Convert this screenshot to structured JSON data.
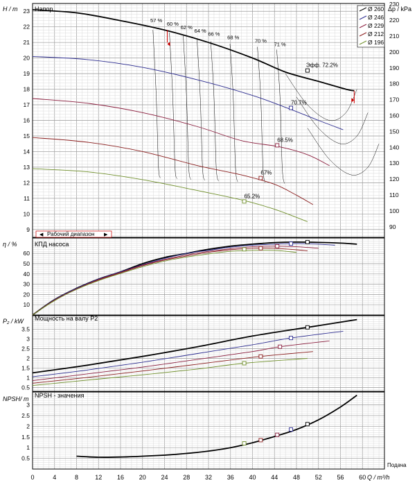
{
  "chart_data": {
    "type": "line",
    "x_axis": {
      "label": "Q / m³/h",
      "range": [
        0,
        64
      ],
      "ticks": [
        0,
        4,
        8,
        12,
        16,
        20,
        24,
        28,
        32,
        36,
        40,
        44,
        48,
        52,
        56,
        60
      ],
      "extra_label": "Подача"
    },
    "head": {
      "title": "Напор",
      "ylabel": "H / m",
      "ylim": [
        8.5,
        23.5
      ],
      "ticks": [
        9,
        10,
        11,
        12,
        13,
        14,
        15,
        16,
        17,
        18,
        19,
        20,
        21,
        22,
        23
      ],
      "right_axis": {
        "label": "Δp / kPa",
        "ticks": [
          90,
          100,
          110,
          120,
          130,
          140,
          150,
          160,
          170,
          180,
          190,
          200,
          210,
          220,
          230
        ]
      },
      "legend": [
        "Ø 260",
        "Ø 246",
        "Ø 229",
        "Ø 212",
        "Ø 196"
      ],
      "series": [
        {
          "name": "Ø 260",
          "color": "#000000",
          "points": [
            [
              0,
              23.1
            ],
            [
              8,
              22.9
            ],
            [
              16,
              22.4
            ],
            [
              24,
              21.8
            ],
            [
              32,
              21.0
            ],
            [
              40,
              20.0
            ],
            [
              46,
              19.1
            ],
            [
              52,
              18.5
            ],
            [
              57,
              18.0
            ],
            [
              58.5,
              17.9
            ]
          ]
        },
        {
          "name": "Ø 246",
          "color": "#2b2b8f",
          "points": [
            [
              0,
              20.1
            ],
            [
              10,
              19.9
            ],
            [
              20,
              19.4
            ],
            [
              30,
              18.6
            ],
            [
              40,
              17.6
            ],
            [
              47,
              16.7
            ],
            [
              52,
              16.0
            ],
            [
              56.5,
              15.4
            ]
          ]
        },
        {
          "name": "Ø 229",
          "color": "#8a1d3d",
          "points": [
            [
              0,
              17.4
            ],
            [
              10,
              17.1
            ],
            [
              20,
              16.5
            ],
            [
              30,
              15.6
            ],
            [
              38,
              14.7
            ],
            [
              45,
              14.3
            ],
            [
              50,
              13.8
            ],
            [
              54,
              13.1
            ]
          ]
        },
        {
          "name": "Ø 212",
          "color": "#8a1d1d",
          "points": [
            [
              0,
              14.9
            ],
            [
              10,
              14.6
            ],
            [
              20,
              14.0
            ],
            [
              30,
              13.1
            ],
            [
              38,
              12.5
            ],
            [
              44,
              11.9
            ],
            [
              48,
              11.2
            ],
            [
              51,
              10.6
            ]
          ]
        },
        {
          "name": "Ø 196",
          "color": "#6f8f2a",
          "points": [
            [
              0,
              12.9
            ],
            [
              10,
              12.7
            ],
            [
              20,
              12.2
            ],
            [
              30,
              11.5
            ],
            [
              38,
              10.9
            ],
            [
              44,
              10.3
            ],
            [
              50,
              9.5
            ]
          ]
        }
      ],
      "efficiency_labels": [
        "57 %",
        "60 %",
        "62 %",
        "64 %",
        "66 %",
        "68 %",
        "70 %",
        "71 %"
      ],
      "point_labels": [
        "Эфф.  72.2%",
        "70.7%",
        "68.5%",
        "67%",
        "65.2%"
      ],
      "working_range_label": "Рабочий диапазон"
    },
    "efficiency": {
      "title": "КПД насоса",
      "ylabel": "η / %",
      "ylim": [
        0,
        75
      ],
      "ticks": [
        10,
        20,
        30,
        40,
        50,
        60
      ],
      "series": [
        {
          "name": "Ø 260",
          "color": "#000000",
          "points": [
            [
              0,
              0
            ],
            [
              4,
              15
            ],
            [
              8,
              26
            ],
            [
              12,
              35
            ],
            [
              16,
              42
            ],
            [
              20,
              50
            ],
            [
              24,
              56
            ],
            [
              28,
              60
            ],
            [
              32,
              64
            ],
            [
              36,
              67
            ],
            [
              40,
              69
            ],
            [
              44,
              70.5
            ],
            [
              48,
              71
            ],
            [
              52,
              70.7
            ],
            [
              56,
              70
            ],
            [
              59,
              69
            ]
          ]
        },
        {
          "name": "Ø 246",
          "color": "#2b2b8f",
          "points": [
            [
              0,
              0
            ],
            [
              4,
              15
            ],
            [
              8,
              26
            ],
            [
              12,
              35
            ],
            [
              16,
              42
            ],
            [
              20,
              49
            ],
            [
              24,
              55
            ],
            [
              28,
              60
            ],
            [
              32,
              63
            ],
            [
              36,
              66
            ],
            [
              40,
              68
            ],
            [
              44,
              69
            ],
            [
              48,
              69.5
            ],
            [
              52,
              69
            ],
            [
              55,
              68
            ]
          ]
        },
        {
          "name": "Ø 229",
          "color": "#8a1d3d",
          "points": [
            [
              0,
              0
            ],
            [
              4,
              14.5
            ],
            [
              8,
              25.5
            ],
            [
              12,
              34.5
            ],
            [
              16,
              41.5
            ],
            [
              20,
              48.5
            ],
            [
              24,
              54
            ],
            [
              28,
              58.5
            ],
            [
              32,
              62
            ],
            [
              36,
              64.5
            ],
            [
              40,
              66.5
            ],
            [
              44,
              67
            ],
            [
              48,
              66.5
            ],
            [
              52,
              65
            ]
          ]
        },
        {
          "name": "Ø 212",
          "color": "#8a1d1d",
          "points": [
            [
              0,
              0
            ],
            [
              4,
              14.5
            ],
            [
              8,
              25
            ],
            [
              12,
              34
            ],
            [
              16,
              41
            ],
            [
              20,
              48
            ],
            [
              24,
              53.5
            ],
            [
              28,
              57.5
            ],
            [
              32,
              61
            ],
            [
              36,
              63.5
            ],
            [
              40,
              65
            ],
            [
              44,
              65
            ],
            [
              48,
              63.5
            ],
            [
              50,
              62.5
            ]
          ]
        },
        {
          "name": "Ø 196",
          "color": "#6f8f2a",
          "points": [
            [
              0,
              0
            ],
            [
              4,
              14
            ],
            [
              8,
              25
            ],
            [
              12,
              33.5
            ],
            [
              16,
              40.5
            ],
            [
              20,
              47
            ],
            [
              24,
              52.5
            ],
            [
              28,
              56.5
            ],
            [
              32,
              59.5
            ],
            [
              36,
              62
            ],
            [
              40,
              63
            ],
            [
              44,
              63
            ],
            [
              48,
              61
            ]
          ]
        }
      ],
      "markers": [
        [
          50,
          71
        ],
        [
          47,
          69.5
        ],
        [
          44.5,
          67
        ],
        [
          41.5,
          65
        ],
        [
          38.5,
          64
        ]
      ]
    },
    "power": {
      "title": "Мощность на валу P2",
      "ylabel": "P₂ / kW",
      "ylim": [
        0.3,
        4.2
      ],
      "ticks": [
        0.5,
        1,
        1.5,
        2,
        2.5,
        3,
        3.5
      ],
      "series": [
        {
          "name": "Ø 260",
          "color": "#000000",
          "points": [
            [
              0,
              1.25
            ],
            [
              10,
              1.65
            ],
            [
              20,
              2.1
            ],
            [
              30,
              2.6
            ],
            [
              40,
              3.15
            ],
            [
              50,
              3.6
            ],
            [
              59,
              4.0
            ]
          ]
        },
        {
          "name": "Ø 246",
          "color": "#2b2b8f",
          "points": [
            [
              0,
              1.05
            ],
            [
              10,
              1.4
            ],
            [
              20,
              1.8
            ],
            [
              30,
              2.25
            ],
            [
              40,
              2.7
            ],
            [
              47,
              3.05
            ],
            [
              56.5,
              3.4
            ]
          ]
        },
        {
          "name": "Ø 229",
          "color": "#8a1d3d",
          "points": [
            [
              0,
              0.85
            ],
            [
              10,
              1.2
            ],
            [
              20,
              1.55
            ],
            [
              30,
              1.95
            ],
            [
              40,
              2.35
            ],
            [
              45,
              2.6
            ],
            [
              54,
              2.9
            ]
          ]
        },
        {
          "name": "Ø 212",
          "color": "#8a1d1d",
          "points": [
            [
              0,
              0.72
            ],
            [
              10,
              1.02
            ],
            [
              20,
              1.35
            ],
            [
              30,
              1.7
            ],
            [
              41.5,
              2.1
            ],
            [
              51,
              2.35
            ]
          ]
        },
        {
          "name": "Ø 196",
          "color": "#6f8f2a",
          "points": [
            [
              0,
              0.6
            ],
            [
              10,
              0.88
            ],
            [
              20,
              1.15
            ],
            [
              30,
              1.45
            ],
            [
              38.5,
              1.75
            ],
            [
              50,
              2.0
            ]
          ]
        }
      ],
      "markers": [
        [
          50,
          3.6
        ],
        [
          47,
          3.05
        ],
        [
          45,
          2.6
        ],
        [
          41.5,
          2.1
        ],
        [
          38.5,
          1.75
        ]
      ]
    },
    "npsh": {
      "title": "NPSH - значения",
      "ylabel": "NPSH/ m",
      "ylim": [
        0,
        3.6
      ],
      "ticks": [
        0.5,
        1,
        1.5,
        2,
        2.5,
        3
      ],
      "series": [
        {
          "name": "NPSH",
          "color": "#000000",
          "points": [
            [
              8,
              0.6
            ],
            [
              12,
              0.55
            ],
            [
              16,
              0.56
            ],
            [
              20,
              0.6
            ],
            [
              24,
              0.65
            ],
            [
              28,
              0.73
            ],
            [
              32,
              0.84
            ],
            [
              36,
              1.0
            ],
            [
              40,
              1.23
            ],
            [
              44,
              1.52
            ],
            [
              48,
              1.85
            ],
            [
              52,
              2.3
            ],
            [
              56,
              2.9
            ],
            [
              59,
              3.45
            ]
          ]
        }
      ],
      "markers": [
        [
          50,
          2.1
        ],
        [
          47,
          1.85
        ],
        [
          44.5,
          1.6
        ],
        [
          41.5,
          1.35
        ],
        [
          38.5,
          1.2
        ]
      ]
    }
  }
}
